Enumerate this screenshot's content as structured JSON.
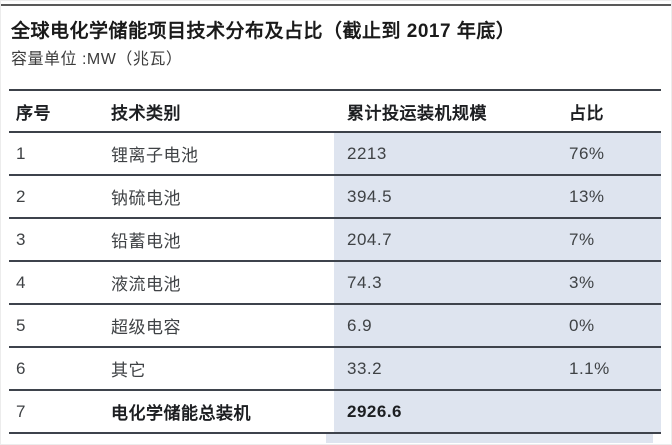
{
  "header": {
    "title": "全球电化学储能项目技术分布及占比（截止到 2017 年底）",
    "subtitle": "容量单位 :MW（兆瓦）"
  },
  "chart_data": {
    "type": "table",
    "title": "全球电化学储能项目技术分布及占比（截止到 2017 年底）",
    "unit_note": "容量单位 :MW（兆瓦）",
    "columns": [
      "序号",
      "技术类别",
      "累计投运装机规模",
      "占比"
    ],
    "rows": [
      [
        "1",
        "锂离子电池",
        "2213",
        "76%"
      ],
      [
        "2",
        "钠硫电池",
        "394.5",
        "13%"
      ],
      [
        "3",
        "铅蓄电池",
        "204.7",
        "7%"
      ],
      [
        "4",
        "液流电池",
        "74.3",
        "3%"
      ],
      [
        "5",
        "超级电容",
        "6.9",
        "0%"
      ],
      [
        "6",
        "其它",
        "33.2",
        "1.1%"
      ],
      [
        "7",
        "电化学储能总装机",
        "2926.6",
        ""
      ]
    ],
    "total_row_index": 6
  },
  "style": {
    "highlight_bg": "#dee4ef",
    "rule_color": "#3c4149",
    "text_color": "#3f4245"
  }
}
